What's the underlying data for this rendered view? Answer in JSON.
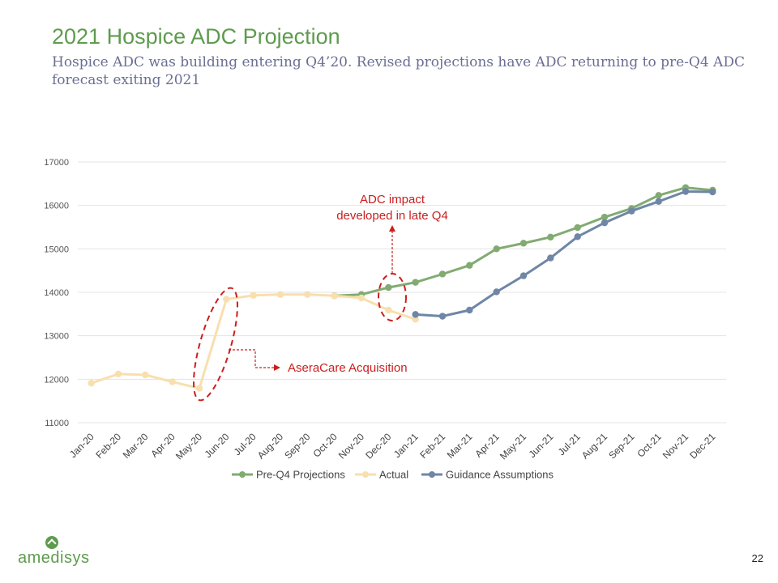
{
  "slide": {
    "title": "2021 Hospice ADC Projection",
    "subtitle": "Hospice ADC was building entering Q4’20. Revised projections have ADC returning to pre-Q4 ADC forecast exiting 2021",
    "page_number": "22",
    "logo_text": "amedisys",
    "brand_color": "#5e9b4e"
  },
  "chart_data": {
    "type": "line",
    "categories": [
      "Jan-20",
      "Feb-20",
      "Mar-20",
      "Apr-20",
      "May-20",
      "Jun-20",
      "Jul-20",
      "Aug-20",
      "Sep-20",
      "Oct-20",
      "Nov-20",
      "Dec-20",
      "Jan-21",
      "Feb-21",
      "Mar-21",
      "Apr-21",
      "May-21",
      "Jun-21",
      "Jul-21",
      "Aug-21",
      "Sep-21",
      "Oct-21",
      "Nov-21",
      "Dec-21"
    ],
    "ylim": [
      11000,
      17000
    ],
    "yticks": [
      11000,
      12000,
      13000,
      14000,
      15000,
      16000,
      17000
    ],
    "legend_position": "bottom",
    "series": [
      {
        "name": "Pre-Q4 Projections",
        "color": "#82ab72",
        "values": [
          null,
          null,
          null,
          null,
          null,
          null,
          null,
          null,
          null,
          13920,
          13950,
          14110,
          14230,
          14420,
          14620,
          15000,
          15130,
          15270,
          15490,
          15730,
          15930,
          16230,
          16410,
          16350
        ]
      },
      {
        "name": "Actual",
        "color": "#f8dfae",
        "values": [
          11910,
          12120,
          12100,
          11940,
          11790,
          13840,
          13930,
          13950,
          13950,
          13920,
          13870,
          13590,
          13380,
          null,
          null,
          null,
          null,
          null,
          null,
          null,
          null,
          null,
          null,
          null
        ]
      },
      {
        "name": "Guidance Assumptions",
        "color": "#6f86a6",
        "values": [
          null,
          null,
          null,
          null,
          null,
          null,
          null,
          null,
          null,
          null,
          null,
          null,
          13490,
          13450,
          13590,
          14010,
          14380,
          14790,
          15280,
          15600,
          15870,
          16090,
          16320,
          16310
        ]
      }
    ],
    "annotations": [
      {
        "text_lines": [
          "ADC impact",
          "developed in late Q4"
        ],
        "color": "#cc1e1e"
      },
      {
        "text": "AseraCare Acquisition",
        "color": "#cc1e1e"
      }
    ]
  }
}
